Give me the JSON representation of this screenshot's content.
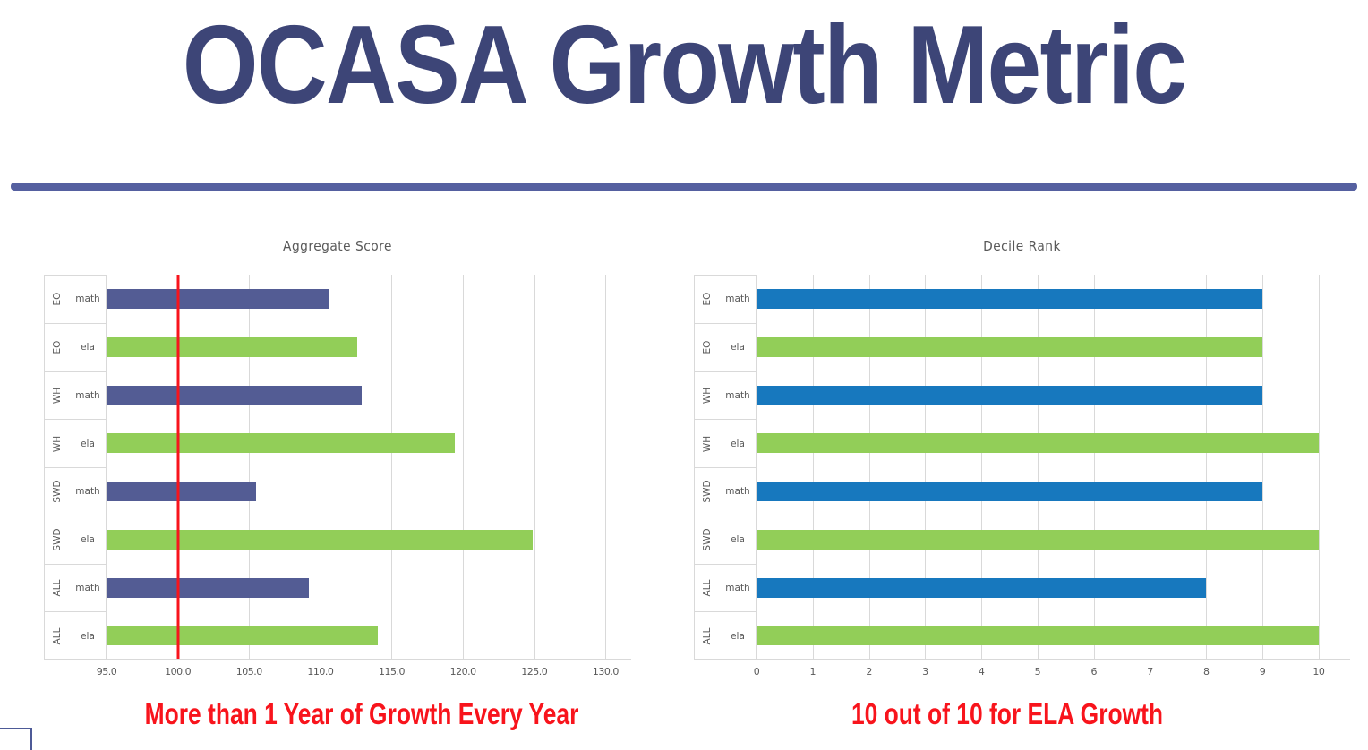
{
  "slide": {
    "title": "OCASA Growth Metric",
    "title_color": "#3D4577",
    "divider_color": "#5560A0",
    "corner_shape_color": "#4D5A97",
    "background": "#FFFFFF"
  },
  "captions": {
    "left": "More than 1 Year of Growth Every Year",
    "right": "10 out of 10 for ELA Growth",
    "color": "#F8141C"
  },
  "colors": {
    "math_left_bar": "#535C94",
    "math_right_bar": "#1778BE",
    "ela_bar": "#92CE58",
    "grid": "#D9D9D9",
    "chart_text": "#595959",
    "reference_line": "#F8141C"
  },
  "chart_data": [
    {
      "type": "bar",
      "orientation": "horizontal",
      "title": "Aggregate Score",
      "grid": true,
      "legend": "none",
      "axis": {
        "min": 95,
        "max": 131.8,
        "tick_values": [
          95,
          100,
          105,
          110,
          115,
          120,
          125,
          130
        ],
        "tick_labels": [
          "95.0",
          "100.0",
          "105.0",
          "110.0",
          "115.0",
          "120.0",
          "125.0",
          "130.0"
        ]
      },
      "ref_line": {
        "value": 100,
        "color": "#F8141C"
      },
      "rows": [
        {
          "group": "EO",
          "subject": "math",
          "value": 110.6,
          "color": "#535C94"
        },
        {
          "group": "EO",
          "subject": "ela",
          "value": 112.6,
          "color": "#92CE58"
        },
        {
          "group": "WH",
          "subject": "math",
          "value": 112.9,
          "color": "#535C94"
        },
        {
          "group": "WH",
          "subject": "ela",
          "value": 119.4,
          "color": "#92CE58"
        },
        {
          "group": "SWD",
          "subject": "math",
          "value": 105.5,
          "color": "#535C94"
        },
        {
          "group": "SWD",
          "subject": "ela",
          "value": 124.9,
          "color": "#92CE58"
        },
        {
          "group": "ALL",
          "subject": "math",
          "value": 109.2,
          "color": "#535C94"
        },
        {
          "group": "ALL",
          "subject": "ela",
          "value": 114.0,
          "color": "#92CE58"
        }
      ]
    },
    {
      "type": "bar",
      "orientation": "horizontal",
      "title": "Decile Rank",
      "grid": true,
      "legend": "none",
      "axis": {
        "min": 0,
        "max": 10.56,
        "tick_values": [
          0,
          1,
          2,
          3,
          4,
          5,
          6,
          7,
          8,
          9,
          10
        ],
        "tick_labels": [
          "0",
          "1",
          "2",
          "3",
          "4",
          "5",
          "6",
          "7",
          "8",
          "9",
          "10"
        ]
      },
      "ref_line": null,
      "rows": [
        {
          "group": "EO",
          "subject": "math",
          "value": 9,
          "color": "#1778BE"
        },
        {
          "group": "EO",
          "subject": "ela",
          "value": 9,
          "color": "#92CE58"
        },
        {
          "group": "WH",
          "subject": "math",
          "value": 9,
          "color": "#1778BE"
        },
        {
          "group": "WH",
          "subject": "ela",
          "value": 10,
          "color": "#92CE58"
        },
        {
          "group": "SWD",
          "subject": "math",
          "value": 9,
          "color": "#1778BE"
        },
        {
          "group": "SWD",
          "subject": "ela",
          "value": 10,
          "color": "#92CE58"
        },
        {
          "group": "ALL",
          "subject": "math",
          "value": 8,
          "color": "#1778BE"
        },
        {
          "group": "ALL",
          "subject": "ela",
          "value": 10,
          "color": "#92CE58"
        }
      ]
    }
  ]
}
